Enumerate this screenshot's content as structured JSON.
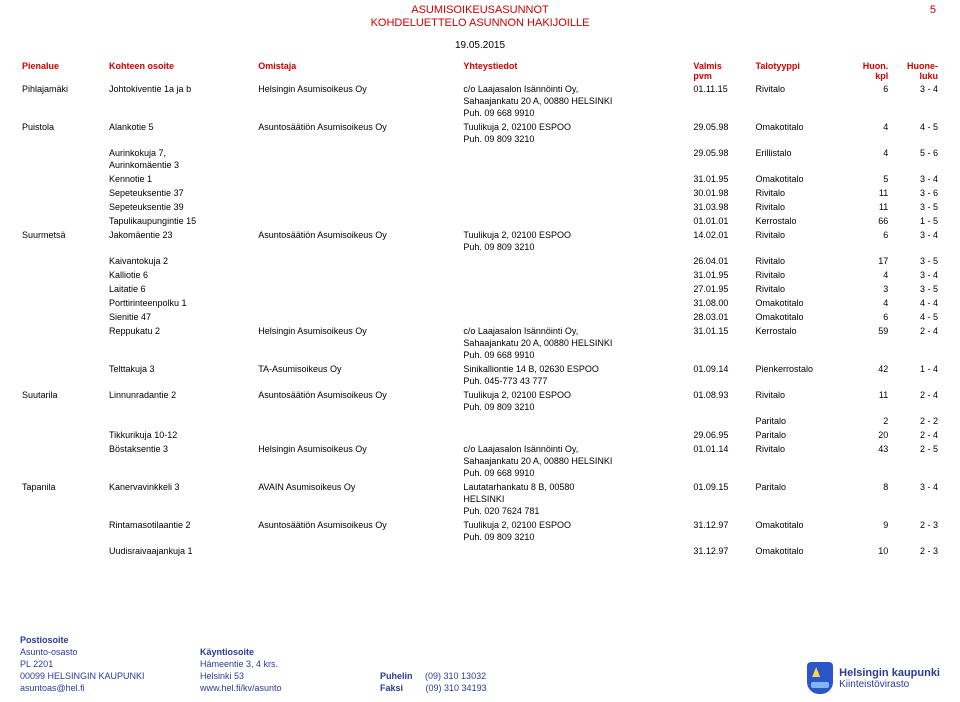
{
  "page": {
    "title_line1": "ASUMISOIKEUSASUNNOT",
    "title_line2": "KOHDELUETTELO ASUNNON HAKIJOILLE",
    "page_number": "5",
    "date": "19.05.2015"
  },
  "columns": {
    "area": "Pienalue",
    "address": "Kohteen osoite",
    "owner": "Omistaja",
    "contact": "Yhteystiedot",
    "date_top": "Valmis",
    "date_sub": "pvm",
    "type": "Talotyyppi",
    "huon_top": "Huon.",
    "huon_sub": "kpl",
    "huone_top": "Huone-",
    "huone_sub": "luku"
  },
  "rows": [
    {
      "area": "Pihlajamäki",
      "address": "Johtokiventie 1a ja b",
      "owner": "Helsingin Asumisoikeus Oy",
      "contact": "c/o Laajasalon Isännöinti Oy,\nSahaajankatu 20 A, 00880 HELSINKI\nPuh. 09 668 9910",
      "date": "01.11.15",
      "type": "Rivitalo",
      "huon": "6",
      "huone": "3 - 4"
    },
    {
      "area": "Puistola",
      "address": "Alankotie 5",
      "owner": "Asuntosäätiön Asumisoikeus Oy",
      "contact": "Tuulikuja 2, 02100 ESPOO\nPuh. 09 809 3210",
      "date": "29.05.98",
      "type": "Omakotitalo",
      "huon": "4",
      "huone": "4 - 5"
    },
    {
      "area": "",
      "address": "Aurinkokuja 7,\nAurinkomäentie 3",
      "owner": "",
      "contact": "",
      "date": "29.05.98",
      "type": "Erillistalo",
      "huon": "4",
      "huone": "5 - 6"
    },
    {
      "area": "",
      "address": "Kennotie 1",
      "owner": "",
      "contact": "",
      "date": "31.01.95",
      "type": "Omakotitalo",
      "huon": "5",
      "huone": "3 - 4"
    },
    {
      "area": "",
      "address": "Sepeteuksentie 37",
      "owner": "",
      "contact": "",
      "date": "30.01.98",
      "type": "Rivitalo",
      "huon": "11",
      "huone": "3 - 6"
    },
    {
      "area": "",
      "address": "Sepeteuksentie 39",
      "owner": "",
      "contact": "",
      "date": "31.03.98",
      "type": "Rivitalo",
      "huon": "11",
      "huone": "3 - 5"
    },
    {
      "area": "",
      "address": "Tapulikaupungintie 15",
      "owner": "",
      "contact": "",
      "date": "01.01.01",
      "type": "Kerrostalo",
      "huon": "66",
      "huone": "1 - 5"
    },
    {
      "area": "Suurmetsä",
      "address": "Jakomäentie 23",
      "owner": "Asuntosäätiön Asumisoikeus Oy",
      "contact": "Tuulikuja 2, 02100 ESPOO\nPuh. 09 809 3210",
      "date": "14.02.01",
      "type": "Rivitalo",
      "huon": "6",
      "huone": "3 - 4"
    },
    {
      "area": "",
      "address": "Kaivantokuja 2",
      "owner": "",
      "contact": "",
      "date": "26.04.01",
      "type": "Rivitalo",
      "huon": "17",
      "huone": "3 - 5"
    },
    {
      "area": "",
      "address": "Kalliotie 6",
      "owner": "",
      "contact": "",
      "date": "31.01.95",
      "type": "Rivitalo",
      "huon": "4",
      "huone": "3 - 4"
    },
    {
      "area": "",
      "address": "Laitatie 6",
      "owner": "",
      "contact": "",
      "date": "27.01.95",
      "type": "Rivitalo",
      "huon": "3",
      "huone": "3 - 5"
    },
    {
      "area": "",
      "address": "Porttirinteenpolku 1",
      "owner": "",
      "contact": "",
      "date": "31.08.00",
      "type": "Omakotitalo",
      "huon": "4",
      "huone": "4 - 4"
    },
    {
      "area": "",
      "address": "Sienitie  47",
      "owner": "",
      "contact": "",
      "date": "28.03.01",
      "type": "Omakotitalo",
      "huon": "6",
      "huone": "4 - 5"
    },
    {
      "area": "",
      "address": "Reppukatu 2",
      "owner": "Helsingin Asumisoikeus Oy",
      "contact": "c/o Laajasalon Isännöinti Oy,\nSahaajankatu 20 A, 00880 HELSINKI\nPuh. 09 668 9910",
      "date": "31.01.15",
      "type": "Kerrostalo",
      "huon": "59",
      "huone": "2 - 4"
    },
    {
      "area": "",
      "address": "Telttakuja 3",
      "owner": "TA-Asumisoikeus Oy",
      "contact": "Sinikalliontie 14 B, 02630 ESPOO\nPuh. 045-773 43 777",
      "date": "01.09.14",
      "type": "Pienkerrostalo",
      "huon": "42",
      "huone": "1 - 4"
    },
    {
      "area": "Suutarila",
      "address": "Linnunradantie 2",
      "owner": "Asuntosäätiön Asumisoikeus Oy",
      "contact": "Tuulikuja 2, 02100 ESPOO\nPuh. 09 809 3210",
      "date": "01.08.93",
      "type": "Rivitalo",
      "huon": "11",
      "huone": "2 - 4"
    },
    {
      "area": "",
      "address": "",
      "owner": "",
      "contact": "",
      "date": "",
      "type": "Paritalo",
      "huon": "2",
      "huone": "2 - 2"
    },
    {
      "area": "",
      "address": "Tikkurikuja 10-12",
      "owner": "",
      "contact": "",
      "date": "29.06.95",
      "type": "Paritalo",
      "huon": "20",
      "huone": "2 - 4"
    },
    {
      "area": "",
      "address": "Böstaksentie 3",
      "owner": "Helsingin Asumisoikeus Oy",
      "contact": "c/o Laajasalon Isännöinti Oy,\nSahaajankatu 20 A, 00880 HELSINKI\nPuh. 09 668 9910",
      "date": "01.01.14",
      "type": "Rivitalo",
      "huon": "43",
      "huone": "2 - 5"
    },
    {
      "area": "Tapanila",
      "address": "Kanervavinkkeli 3",
      "owner": "AVAIN Asumisoikeus Oy",
      "contact": "Lautatarhankatu 8 B, 00580\nHELSINKI\nPuh. 020 7624 781",
      "date": "01.09.15",
      "type": "Paritalo",
      "huon": "8",
      "huone": "3 - 4"
    },
    {
      "area": "",
      "address": "Rintamasotilaantie 2",
      "owner": "Asuntosäätiön Asumisoikeus Oy",
      "contact": "Tuulikuja 2, 02100 ESPOO\nPuh. 09 809 3210",
      "date": "31.12.97",
      "type": "Omakotitalo",
      "huon": "9",
      "huone": "2 - 3"
    },
    {
      "area": "",
      "address": "Uudisraivaajankuja 1",
      "owner": "",
      "contact": "",
      "date": "31.12.97",
      "type": "Omakotitalo",
      "huon": "10",
      "huone": "2 - 3"
    }
  ],
  "footer": {
    "c1_h": "Postiosoite",
    "c1_l1": "Asunto-osasto",
    "c1_l2": "PL 2201",
    "c1_l3": "00099 HELSINGIN KAUPUNKI",
    "c1_l4": "asuntoas@hel.fi",
    "c2_h": "Käyntiosoite",
    "c2_l1": "Hämeentie 3, 4 krs.",
    "c2_l2": "Helsinki 53",
    "c2_l3": "www.hel.fi/kv/asunto",
    "c3_h1": "Puhelin",
    "c3_v1": "(09) 310 13032",
    "c3_h2": "Faksi",
    "c3_v2": "(09) 310 34193",
    "logo_l1": "Helsingin kaupunki",
    "logo_l2": "Kiinteistövirasto"
  }
}
